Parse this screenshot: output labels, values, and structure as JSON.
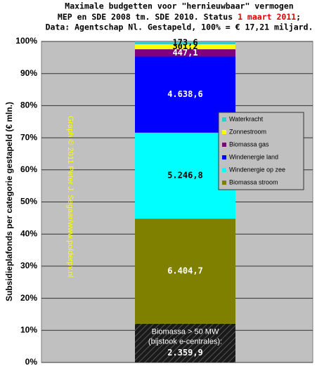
{
  "chart_data": {
    "type": "stacked_bar",
    "title": [
      "Maximale budgetten voor \"hernieuwbaar\" vermogen",
      [
        "MEP en SDE 2008 tm. SDE 2010. Status ",
        "1 maart 2011",
        ";"
      ],
      "Data: Agentschap Nl. Gestapeld, 100% = € 17,21 miljard."
    ],
    "y_label": "Subsidieplafonds per categorie gestapeld (€ mln.)",
    "watermark": "Graph © 2011 Peter J. Segaar/www.polderpv.nl",
    "ylim": [
      0,
      19571.9
    ],
    "yticks": [
      {
        "value": 0,
        "label": "0%"
      },
      {
        "value": 1957.19,
        "label": "10%"
      },
      {
        "value": 3914.38,
        "label": "20%"
      },
      {
        "value": 5871.57,
        "label": "30%"
      },
      {
        "value": 7828.76,
        "label": "40%"
      },
      {
        "value": 9785.95,
        "label": "50%"
      },
      {
        "value": 11743.14,
        "label": "60%"
      },
      {
        "value": 13700.33,
        "label": "70%"
      },
      {
        "value": 15657.52,
        "label": "80%"
      },
      {
        "value": 17614.71,
        "label": "90%"
      },
      {
        "value": 19571.9,
        "label": "100%"
      }
    ],
    "grid": true,
    "series": [
      {
        "name": [
          "Biomassa > 50 MW",
          "(bijstook e-centrales):"
        ],
        "color": "hatch",
        "label_color": "#ffffff",
        "in_legend": false,
        "values": [
          2359.9
        ],
        "value_labels": [
          "2.359,9"
        ]
      },
      {
        "name": "Biomassa stroom",
        "color": "#808000",
        "label_color": "#ffffff",
        "values": [
          6404.7
        ],
        "value_labels": [
          "6.404,7"
        ]
      },
      {
        "name": "Windenergie op zee",
        "color": "#00ffff",
        "label_color": "#000000",
        "values": [
          5246.8
        ],
        "value_labels": [
          "5.246,8"
        ]
      },
      {
        "name": "Windenergie land",
        "color": "#0000ff",
        "label_color": "#ffffff",
        "values": [
          4638.6
        ],
        "value_labels": [
          "4.638,6"
        ]
      },
      {
        "name": "Biomassa gas",
        "color": "#800080",
        "label_color": "#ffffff",
        "values": [
          447.1
        ],
        "value_labels": [
          "447,1"
        ]
      },
      {
        "name": "Zonnestroom",
        "color": "#ffff00",
        "label_color": "#000000",
        "values": [
          301.2
        ],
        "value_labels": [
          "301,2"
        ]
      },
      {
        "name": "Waterkracht",
        "color": "#33cccc",
        "label_color": "#000000",
        "values": [
          173.6
        ],
        "value_labels": [
          "173,6"
        ]
      }
    ]
  }
}
